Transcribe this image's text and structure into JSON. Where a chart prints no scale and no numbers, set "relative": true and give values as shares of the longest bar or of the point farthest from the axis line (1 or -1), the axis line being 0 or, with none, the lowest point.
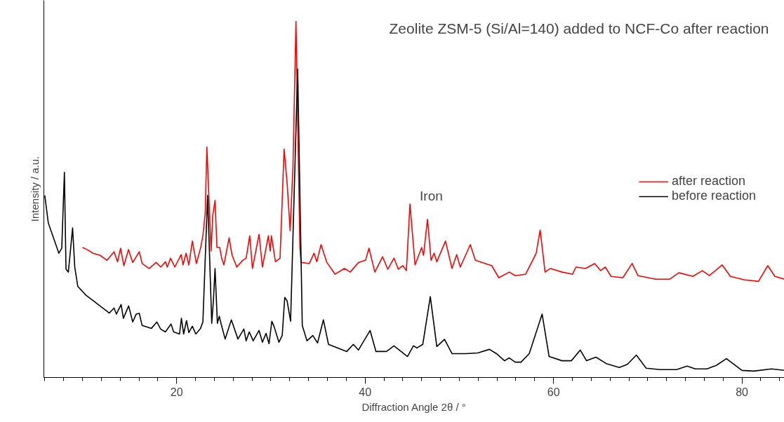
{
  "chart_data": {
    "type": "line",
    "title": "Zeolite ZSM-5 (Si/Al=140) added to NCF-Co after reaction",
    "xlabel": "Diffraction Angle 2θ / °",
    "ylabel": "Intensity / a.u.",
    "relative": true,
    "xlim": [
      5.9,
      84.5
    ],
    "xticks": [
      {
        "value": 6,
        "label": null
      },
      {
        "value": 8,
        "label": null
      },
      {
        "value": 10,
        "label": null
      },
      {
        "value": 12,
        "label": null
      },
      {
        "value": 14,
        "label": null
      },
      {
        "value": 16,
        "label": null
      },
      {
        "value": 18,
        "label": null
      },
      20,
      {
        "value": 22,
        "label": null
      },
      {
        "value": 24,
        "label": null
      },
      {
        "value": 26,
        "label": null
      },
      {
        "value": 28,
        "label": null
      },
      {
        "value": 30,
        "label": null
      },
      {
        "value": 32,
        "label": null
      },
      {
        "value": 34,
        "label": null
      },
      {
        "value": 36,
        "label": null
      },
      {
        "value": 38,
        "label": null
      },
      40,
      {
        "value": 42,
        "label": null
      },
      {
        "value": 44,
        "label": null
      },
      {
        "value": 46,
        "label": null
      },
      {
        "value": 48,
        "label": null
      },
      {
        "value": 50,
        "label": null
      },
      {
        "value": 52,
        "label": null
      },
      {
        "value": 54,
        "label": null
      },
      {
        "value": 56,
        "label": null
      },
      {
        "value": 58,
        "label": null
      },
      60,
      {
        "value": 62,
        "label": null
      },
      {
        "value": 64,
        "label": null
      },
      {
        "value": 66,
        "label": null
      },
      {
        "value": 68,
        "label": null
      },
      {
        "value": 70,
        "label": null
      },
      {
        "value": 72,
        "label": null
      },
      {
        "value": 74,
        "label": null
      },
      {
        "value": 76,
        "label": null
      },
      {
        "value": 78,
        "label": null
      },
      80,
      {
        "value": 82,
        "label": null
      },
      {
        "value": 84,
        "label": null
      }
    ],
    "grid": false,
    "legend": "right",
    "marker": "none",
    "line_style": "solid",
    "annotations": [
      {
        "text": "Iron",
        "x": 44.76,
        "y": 0.487
      }
    ],
    "series": [
      {
        "name": "after reaction",
        "color": "#ff0000",
        "x": [
          10.0,
          10.49,
          11.11,
          11.86,
          12.6,
          13.35,
          13.72,
          14.04,
          14.39,
          14.88,
          15.33,
          16.03,
          16.33,
          17.07,
          17.82,
          18.31,
          18.81,
          19.0,
          19.35,
          19.8,
          20.47,
          20.67,
          20.99,
          21.29,
          21.66,
          22.09,
          22.53,
          22.78,
          23.03,
          23.2,
          23.65,
          23.82,
          24.07,
          24.27,
          24.57,
          24.77,
          25.01,
          25.56,
          25.88,
          26.38,
          27.0,
          27.37,
          27.75,
          28.04,
          28.74,
          29.1,
          29.73,
          29.93,
          30.05,
          30.48,
          30.97,
          31.4,
          31.72,
          32.04,
          32.34,
          32.66,
          33.08,
          33.2,
          34.08,
          34.58,
          34.87,
          35.32,
          35.94,
          36.81,
          37.8,
          38.42,
          39.29,
          40.04,
          40.41,
          41.03,
          41.85,
          42.4,
          43.06,
          43.52,
          44.0,
          44.38,
          44.76,
          45.3,
          46.0,
          46.2,
          46.62,
          47.0,
          47.32,
          47.61,
          48.53,
          49.22,
          49.72,
          50.1,
          51.16,
          51.7,
          53.2,
          53.44,
          54.19,
          55.3,
          55.93,
          57.04,
          58.16,
          58.58,
          59.1,
          59.65,
          60.9,
          62.01,
          62.38,
          63.38,
          64.37,
          64.99,
          65.49,
          66.1,
          67.35,
          68.34,
          68.96,
          70.82,
          72.31,
          73.3,
          74.79,
          75.79,
          76.53,
          77.9,
          78.77,
          80.26,
          81.75,
          82.74,
          83.49,
          84.49
        ],
        "values": [
          0.365,
          0.359,
          0.349,
          0.343,
          0.329,
          0.353,
          0.325,
          0.363,
          0.314,
          0.359,
          0.323,
          0.353,
          0.32,
          0.306,
          0.323,
          0.31,
          0.325,
          0.31,
          0.335,
          0.31,
          0.345,
          0.316,
          0.349,
          0.316,
          0.383,
          0.32,
          0.363,
          0.398,
          0.462,
          0.647,
          0.355,
          0.454,
          0.497,
          0.365,
          0.365,
          0.335,
          0.316,
          0.392,
          0.343,
          0.31,
          0.329,
          0.335,
          0.398,
          0.306,
          0.402,
          0.31,
          0.398,
          0.355,
          0.398,
          0.325,
          0.335,
          0.641,
          0.546,
          0.412,
          0.592,
          1.0,
          0.363,
          0.323,
          0.32,
          0.349,
          0.325,
          0.373,
          0.323,
          0.29,
          0.306,
          0.296,
          0.323,
          0.329,
          0.363,
          0.296,
          0.339,
          0.304,
          0.335,
          0.304,
          0.314,
          0.3,
          0.487,
          0.316,
          0.365,
          0.343,
          0.444,
          0.329,
          0.349,
          0.325,
          0.383,
          0.306,
          0.345,
          0.31,
          0.373,
          0.329,
          0.316,
          0.314,
          0.28,
          0.296,
          0.286,
          0.29,
          0.349,
          0.414,
          0.296,
          0.306,
          0.296,
          0.29,
          0.31,
          0.306,
          0.32,
          0.3,
          0.31,
          0.284,
          0.28,
          0.32,
          0.286,
          0.276,
          0.276,
          0.294,
          0.284,
          0.3,
          0.286,
          0.316,
          0.284,
          0.274,
          0.27,
          0.314,
          0.284,
          0.276
        ]
      },
      {
        "name": "before reaction",
        "color": "#000000",
        "x": [
          6.0,
          6.37,
          7.49,
          7.8,
          8.08,
          8.25,
          8.5,
          8.95,
          9.18,
          9.5,
          10.37,
          11.86,
          12.85,
          13.35,
          13.6,
          14.1,
          14.34,
          14.9,
          15.33,
          15.7,
          16.03,
          16.33,
          17.32,
          17.9,
          18.29,
          18.8,
          19.4,
          19.68,
          20.3,
          20.5,
          20.74,
          21.04,
          21.29,
          21.66,
          22.03,
          22.53,
          22.78,
          23.28,
          23.72,
          23.9,
          24.07,
          24.32,
          24.52,
          24.7,
          25.14,
          25.8,
          26.5,
          27.13,
          27.37,
          27.7,
          28.12,
          28.74,
          29.1,
          29.48,
          29.8,
          30.1,
          30.35,
          30.85,
          31.2,
          31.47,
          31.72,
          32.09,
          32.84,
          33.33,
          33.83,
          34.45,
          34.95,
          35.57,
          36.11,
          37.06,
          38.05,
          38.75,
          39.29,
          40.53,
          41.15,
          42.27,
          43.06,
          44.5,
          45.12,
          45.5,
          46.12,
          46.92,
          47.61,
          48.43,
          49.22,
          50.7,
          51.95,
          53.2,
          53.94,
          54.8,
          55.3,
          55.93,
          56.55,
          57.42,
          58.79,
          59.53,
          60.9,
          61.89,
          62.84,
          63.5,
          64.5,
          65.6,
          66.98,
          67.84,
          68.79,
          69.83,
          71.32,
          73.06,
          74.17,
          75.05,
          76.29,
          77.28,
          78.35,
          80.0,
          81.25,
          83.13,
          84.5
        ],
        "values": [
          0.511,
          0.434,
          0.349,
          0.363,
          0.576,
          0.304,
          0.296,
          0.42,
          0.31,
          0.256,
          0.231,
          0.201,
          0.181,
          0.195,
          0.178,
          0.205,
          0.166,
          0.201,
          0.156,
          0.178,
          0.18,
          0.146,
          0.138,
          0.156,
          0.136,
          0.128,
          0.15,
          0.128,
          0.122,
          0.166,
          0.122,
          0.16,
          0.126,
          0.144,
          0.122,
          0.138,
          0.156,
          0.511,
          0.152,
          0.217,
          0.306,
          0.152,
          0.172,
          0.152,
          0.108,
          0.162,
          0.108,
          0.136,
          0.103,
          0.128,
          0.103,
          0.132,
          0.099,
          0.124,
          0.095,
          0.158,
          0.142,
          0.099,
          0.118,
          0.225,
          0.215,
          0.158,
          0.866,
          0.146,
          0.103,
          0.118,
          0.097,
          0.162,
          0.093,
          0.083,
          0.073,
          0.093,
          0.077,
          0.132,
          0.073,
          0.073,
          0.089,
          0.059,
          0.089,
          0.083,
          0.093,
          0.227,
          0.087,
          0.107,
          0.067,
          0.067,
          0.069,
          0.079,
          0.067,
          0.047,
          0.055,
          0.043,
          0.043,
          0.067,
          0.178,
          0.059,
          0.047,
          0.047,
          0.077,
          0.047,
          0.057,
          0.039,
          0.028,
          0.037,
          0.063,
          0.026,
          0.022,
          0.022,
          0.032,
          0.024,
          0.024,
          0.034,
          0.053,
          0.02,
          0.018,
          0.024,
          0.02
        ]
      }
    ]
  }
}
